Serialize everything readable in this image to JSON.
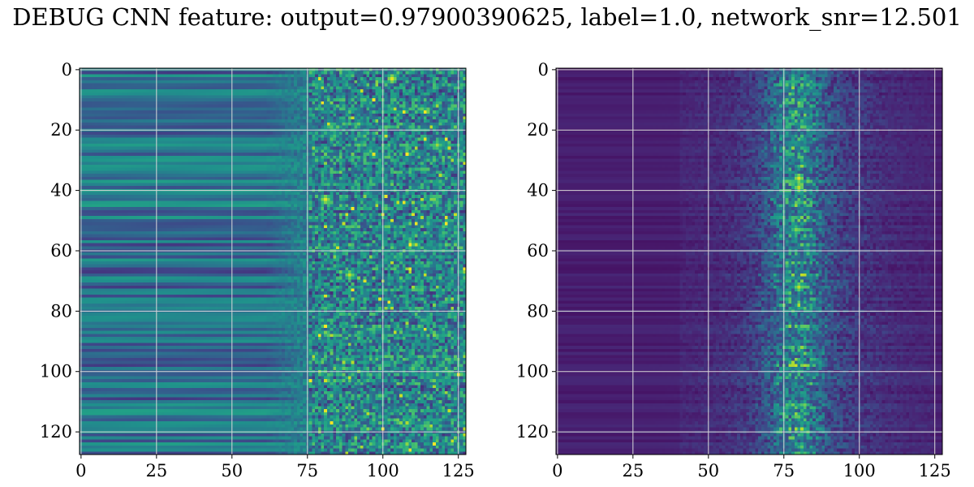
{
  "title": "DEBUG CNN feature: output=0.97900390625, label=1.0, network_snr=12.501",
  "colormap": "viridis",
  "chart_data": [
    {
      "type": "heatmap",
      "title": "",
      "xlabel": "",
      "ylabel": "",
      "rows": 128,
      "cols": 128,
      "xlim": [
        0,
        127
      ],
      "ylim": [
        127,
        0
      ],
      "xticks": [
        0,
        25,
        50,
        75,
        100,
        125
      ],
      "yticks": [
        0,
        20,
        40,
        60,
        80,
        100,
        120
      ],
      "grid": true,
      "description_of_values": "Smooth horizontal stripes for columns 0-70; noisy high-variance values for columns 75-127 with bright spots near (x≈80,y≈43), (x≈89,y≈68), (x≈103,y≈3), (x≈118,y≈25)",
      "pattern": "left-smooth-right-noisy",
      "peaks": [
        {
          "x": 81,
          "y": 43,
          "v": 0.95
        },
        {
          "x": 89,
          "y": 68,
          "v": 0.9
        },
        {
          "x": 103,
          "y": 3,
          "v": 0.95
        },
        {
          "x": 118,
          "y": 25,
          "v": 0.85
        },
        {
          "x": 117,
          "y": 43,
          "v": 0.8
        },
        {
          "x": 110,
          "y": 99,
          "v": 0.75
        }
      ]
    },
    {
      "type": "heatmap",
      "title": "",
      "xlabel": "",
      "ylabel": "",
      "rows": 128,
      "cols": 128,
      "xlim": [
        0,
        127
      ],
      "ylim": [
        127,
        0
      ],
      "xticks": [
        0,
        25,
        50,
        75,
        100,
        125
      ],
      "yticks": [
        0,
        20,
        40,
        60,
        80,
        100,
        120
      ],
      "grid": true,
      "pattern": "dark-with-ridge",
      "ridge_center_x": 79,
      "peaks": [
        {
          "x": 80,
          "y": 36,
          "v": 0.95
        },
        {
          "x": 80,
          "y": 39,
          "v": 0.9
        },
        {
          "x": 80,
          "y": 72,
          "v": 0.9
        },
        {
          "x": 79,
          "y": 53,
          "v": 0.8
        },
        {
          "x": 80,
          "y": 115,
          "v": 0.75
        }
      ]
    }
  ]
}
